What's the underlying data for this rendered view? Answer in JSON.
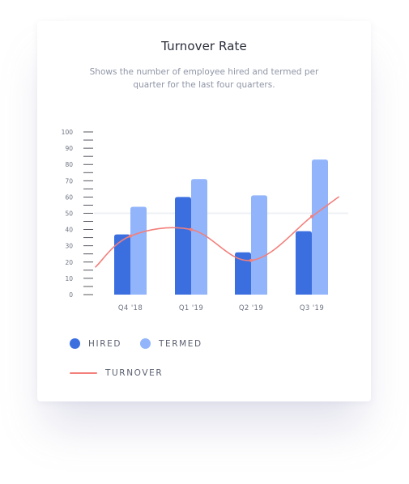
{
  "card": {
    "title": "Turnover Rate",
    "subtitle": "Shows the number of employee hired and termed per quarter for the last four quarters."
  },
  "legend": {
    "hired": "HIRED",
    "termed": "TERMED",
    "turnover": "TURNOVER"
  },
  "colors": {
    "hired": "#3b6fe0",
    "termed": "#91b4fb",
    "turnover": "#f37f7b",
    "axis": "#2c2f3a",
    "tick_text": "#6c7180",
    "refline": "#eef0f5"
  },
  "chart_data": {
    "type": "bar",
    "categories": [
      "Q4 '18",
      "Q1 '19",
      "Q2 '19",
      "Q3 '19"
    ],
    "series": [
      {
        "name": "HIRED",
        "values": [
          37,
          60,
          26,
          39
        ]
      },
      {
        "name": "TERMED",
        "values": [
          54,
          71,
          61,
          83
        ]
      },
      {
        "name": "TURNOVER",
        "type": "line",
        "values": [
          36,
          40,
          21,
          48
        ]
      }
    ],
    "y_ticks": [
      0,
      10,
      20,
      30,
      40,
      50,
      60,
      70,
      80,
      90,
      100
    ],
    "ylim": [
      0,
      100
    ],
    "reference_line": 50,
    "legend_position": "bottom-left"
  }
}
